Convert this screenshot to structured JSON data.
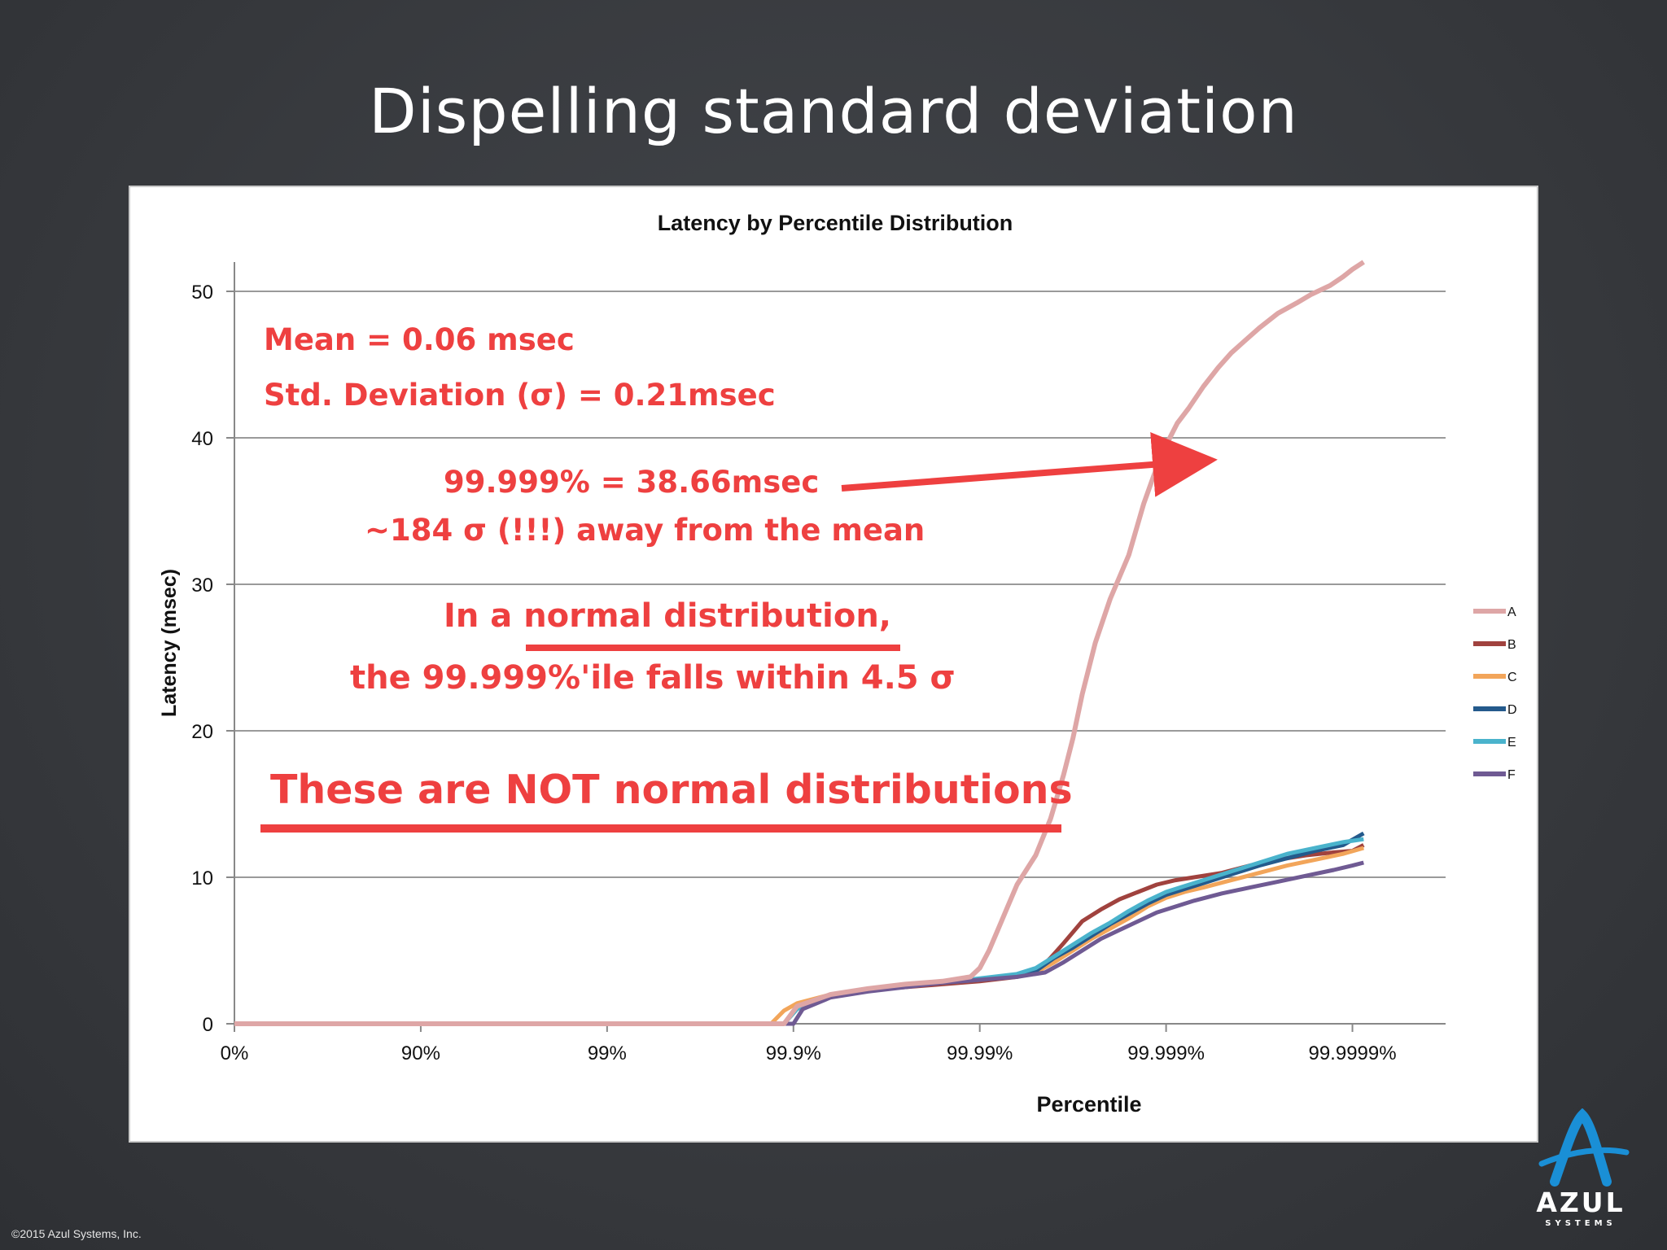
{
  "slide": {
    "title": "Dispelling standard deviation",
    "footer": "©2015 Azul Systems, Inc.",
    "logo_text": "AZUL",
    "logo_subtext": "SYSTEMS"
  },
  "annotations": {
    "mean": "Mean = 0.06 msec",
    "std_dev": "Std. Deviation (σ) = 0.21msec",
    "p99999": "99.999% = 38.66msec",
    "sigma_away": "~184 σ (!!!) away from the mean",
    "normal_line1": "In a normal distribution,",
    "normal_line2": "the 99.999%'ile falls within 4.5 σ",
    "not_normal": "These are NOT normal distributions"
  },
  "colors": {
    "annotation": "#ee4040",
    "A": "#dea6a6",
    "B": "#a0423e",
    "C": "#f2a55a",
    "D": "#245a8c",
    "E": "#4ab3cc",
    "F": "#6f5a93"
  },
  "chart_data": {
    "type": "line",
    "title": "Latency by Percentile Distribution",
    "xlabel": "Percentile",
    "ylabel": "Latency (msec)",
    "x_scale": "log 1/(1-percentile)",
    "x_ticks": [
      "0%",
      "90%",
      "99%",
      "99.9%",
      "99.99%",
      "99.999%",
      "99.9999%"
    ],
    "y_ticks": [
      "0",
      "10",
      "20",
      "30",
      "40",
      "50"
    ],
    "ylim": [
      0,
      52
    ],
    "grid": "horizontal",
    "legend_position": "right",
    "series": [
      {
        "name": "A",
        "points": [
          [
            0,
            0
          ],
          [
            2.95,
            0
          ],
          [
            3.02,
            1.2
          ],
          [
            3.2,
            2.0
          ],
          [
            3.4,
            2.4
          ],
          [
            3.6,
            2.7
          ],
          [
            3.8,
            2.9
          ],
          [
            3.95,
            3.2
          ],
          [
            4.0,
            3.8
          ],
          [
            4.05,
            5.0
          ],
          [
            4.1,
            6.5
          ],
          [
            4.15,
            8.0
          ],
          [
            4.2,
            9.5
          ],
          [
            4.3,
            11.5
          ],
          [
            4.38,
            14.0
          ],
          [
            4.45,
            17.0
          ],
          [
            4.5,
            19.5
          ],
          [
            4.55,
            22.5
          ],
          [
            4.62,
            26.0
          ],
          [
            4.7,
            29.0
          ],
          [
            4.8,
            32.0
          ],
          [
            4.88,
            35.5
          ],
          [
            4.95,
            38.0
          ],
          [
            5.0,
            39.5
          ],
          [
            5.06,
            41.0
          ],
          [
            5.12,
            42.0
          ],
          [
            5.2,
            43.5
          ],
          [
            5.28,
            44.8
          ],
          [
            5.35,
            45.8
          ],
          [
            5.42,
            46.6
          ],
          [
            5.5,
            47.5
          ],
          [
            5.6,
            48.5
          ],
          [
            5.7,
            49.2
          ],
          [
            5.78,
            49.8
          ],
          [
            5.88,
            50.4
          ],
          [
            5.95,
            51.0
          ],
          [
            6.0,
            51.5
          ],
          [
            6.06,
            52.0
          ]
        ]
      },
      {
        "name": "B",
        "points": [
          [
            0,
            0
          ],
          [
            2.95,
            0
          ],
          [
            3.02,
            1.2
          ],
          [
            3.2,
            2.0
          ],
          [
            3.4,
            2.3
          ],
          [
            3.6,
            2.5
          ],
          [
            3.8,
            2.7
          ],
          [
            4.0,
            2.9
          ],
          [
            4.2,
            3.2
          ],
          [
            4.3,
            3.5
          ],
          [
            4.38,
            4.5
          ],
          [
            4.45,
            5.5
          ],
          [
            4.55,
            7.0
          ],
          [
            4.65,
            7.8
          ],
          [
            4.75,
            8.5
          ],
          [
            4.85,
            9.0
          ],
          [
            4.95,
            9.5
          ],
          [
            5.05,
            9.8
          ],
          [
            5.15,
            10.0
          ],
          [
            5.3,
            10.3
          ],
          [
            5.45,
            10.8
          ],
          [
            5.6,
            11.2
          ],
          [
            5.75,
            11.5
          ],
          [
            5.9,
            11.7
          ],
          [
            6.0,
            11.8
          ],
          [
            6.06,
            12.2
          ]
        ]
      },
      {
        "name": "C",
        "points": [
          [
            0,
            0
          ],
          [
            2.88,
            0
          ],
          [
            2.95,
            0.9
          ],
          [
            3.02,
            1.4
          ],
          [
            3.2,
            2.0
          ],
          [
            3.4,
            2.3
          ],
          [
            3.6,
            2.6
          ],
          [
            3.8,
            2.8
          ],
          [
            4.0,
            3.0
          ],
          [
            4.2,
            3.3
          ],
          [
            4.3,
            3.5
          ],
          [
            4.4,
            4.2
          ],
          [
            4.5,
            5.0
          ],
          [
            4.6,
            5.8
          ],
          [
            4.7,
            6.5
          ],
          [
            4.8,
            7.2
          ],
          [
            4.9,
            8.0
          ],
          [
            5.0,
            8.6
          ],
          [
            5.1,
            9.0
          ],
          [
            5.2,
            9.3
          ],
          [
            5.35,
            9.8
          ],
          [
            5.5,
            10.3
          ],
          [
            5.65,
            10.8
          ],
          [
            5.8,
            11.2
          ],
          [
            5.95,
            11.6
          ],
          [
            6.06,
            12.0
          ]
        ]
      },
      {
        "name": "D",
        "points": [
          [
            0,
            0
          ],
          [
            2.95,
            0
          ],
          [
            3.02,
            1.2
          ],
          [
            3.2,
            2.0
          ],
          [
            3.4,
            2.3
          ],
          [
            3.6,
            2.6
          ],
          [
            3.8,
            2.8
          ],
          [
            4.0,
            3.0
          ],
          [
            4.2,
            3.3
          ],
          [
            4.3,
            3.6
          ],
          [
            4.4,
            4.5
          ],
          [
            4.5,
            5.2
          ],
          [
            4.6,
            6.0
          ],
          [
            4.7,
            6.8
          ],
          [
            4.8,
            7.5
          ],
          [
            4.9,
            8.2
          ],
          [
            5.0,
            8.8
          ],
          [
            5.1,
            9.2
          ],
          [
            5.2,
            9.6
          ],
          [
            5.35,
            10.2
          ],
          [
            5.5,
            10.8
          ],
          [
            5.65,
            11.3
          ],
          [
            5.8,
            11.8
          ],
          [
            5.95,
            12.2
          ],
          [
            6.06,
            13.0
          ]
        ]
      },
      {
        "name": "E",
        "points": [
          [
            0,
            0
          ],
          [
            2.95,
            0
          ],
          [
            3.02,
            1.0
          ],
          [
            3.2,
            2.0
          ],
          [
            3.4,
            2.3
          ],
          [
            3.6,
            2.6
          ],
          [
            3.8,
            2.8
          ],
          [
            4.0,
            3.1
          ],
          [
            4.2,
            3.4
          ],
          [
            4.3,
            3.8
          ],
          [
            4.4,
            4.6
          ],
          [
            4.5,
            5.4
          ],
          [
            4.6,
            6.2
          ],
          [
            4.7,
            6.9
          ],
          [
            4.8,
            7.7
          ],
          [
            4.9,
            8.4
          ],
          [
            5.0,
            9.0
          ],
          [
            5.1,
            9.4
          ],
          [
            5.2,
            9.8
          ],
          [
            5.35,
            10.4
          ],
          [
            5.5,
            11.0
          ],
          [
            5.65,
            11.6
          ],
          [
            5.8,
            12.0
          ],
          [
            5.95,
            12.4
          ],
          [
            6.06,
            12.6
          ]
        ]
      },
      {
        "name": "F",
        "points": [
          [
            0,
            0
          ],
          [
            3.0,
            0
          ],
          [
            3.05,
            1.0
          ],
          [
            3.2,
            1.8
          ],
          [
            3.4,
            2.2
          ],
          [
            3.6,
            2.5
          ],
          [
            3.8,
            2.8
          ],
          [
            4.0,
            3.0
          ],
          [
            4.2,
            3.2
          ],
          [
            4.35,
            3.5
          ],
          [
            4.45,
            4.2
          ],
          [
            4.55,
            5.0
          ],
          [
            4.65,
            5.8
          ],
          [
            4.75,
            6.4
          ],
          [
            4.85,
            7.0
          ],
          [
            4.95,
            7.6
          ],
          [
            5.05,
            8.0
          ],
          [
            5.15,
            8.4
          ],
          [
            5.3,
            8.9
          ],
          [
            5.45,
            9.3
          ],
          [
            5.6,
            9.7
          ],
          [
            5.75,
            10.1
          ],
          [
            5.9,
            10.5
          ],
          [
            6.0,
            10.8
          ],
          [
            6.06,
            11.0
          ]
        ]
      }
    ]
  }
}
